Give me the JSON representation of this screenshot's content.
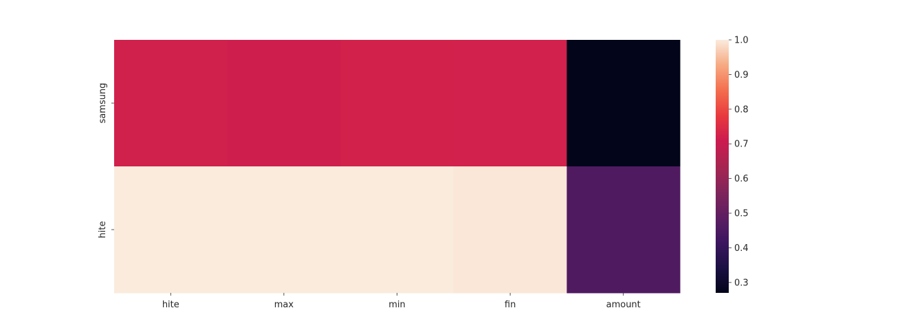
{
  "chart_data": {
    "type": "heatmap",
    "title": "",
    "xlabel": "",
    "ylabel": "",
    "columns": [
      "hite",
      "max",
      "min",
      "fin",
      "amount"
    ],
    "rows": [
      "samsung",
      "hite"
    ],
    "values": [
      [
        0.72,
        0.715,
        0.725,
        0.722,
        0.27
      ],
      [
        1.0,
        1.0,
        1.0,
        0.995,
        0.46
      ]
    ],
    "colorbar": {
      "min": 0.27,
      "max": 1.0,
      "ticks": [
        "0.3",
        "0.4",
        "0.5",
        "0.6",
        "0.7",
        "0.8",
        "0.9",
        "1.0"
      ]
    },
    "colormap": "rocket"
  }
}
